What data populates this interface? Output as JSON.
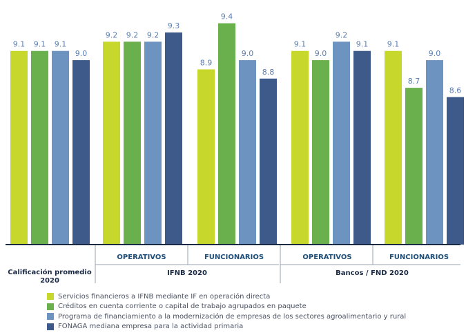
{
  "chart_data": {
    "type": "bar",
    "group_labels": [
      "OPERATIVOS",
      "FUNCIONARIOS",
      "OPERATIVOS",
      "FUNCIONARIOS"
    ],
    "categories": [
      "Calificación promedio 2020",
      "IFNB 2020 – OPERATIVOS",
      "IFNB 2020 – FUNCIONARIOS",
      "Bancos / FND 2020 – OPERATIVOS",
      "Bancos / FND 2020 – FUNCIONARIOS"
    ],
    "category_titles": [
      {
        "lines": [
          "Calificación promedio",
          "2020"
        ]
      },
      {
        "lines": [
          "IFNB 2020"
        ]
      },
      {
        "lines": [
          "Bancos / FND 2020"
        ]
      }
    ],
    "series": [
      {
        "name": "Servicios financieros a IFNB mediante IF en operación directa",
        "color": "#c8d72c",
        "values": [
          9.1,
          9.2,
          8.9,
          9.1,
          9.1
        ]
      },
      {
        "name": "Créditos en cuenta corriente o capital de trabajo agrupados en paquete",
        "color": "#6ab04c",
        "values": [
          9.1,
          9.2,
          9.4,
          9.0,
          8.7
        ]
      },
      {
        "name": "Programa de financiamiento a la modernización de empresas de los sectores agroalimentario y rural",
        "color": "#6d93c0",
        "values": [
          9.1,
          9.2,
          9.0,
          9.2,
          9.0
        ]
      },
      {
        "name": "FONAGA mediana empresa para la actividad primaria",
        "color": "#3e5a8a",
        "values": [
          9.0,
          9.3,
          8.8,
          9.1,
          8.6
        ]
      }
    ],
    "value_label_color": "#5b7fb0",
    "axis_color": "#1a2a44",
    "ylim": [
      7.0,
      9.45
    ],
    "grid": false,
    "legend_position": "bottom-left"
  }
}
